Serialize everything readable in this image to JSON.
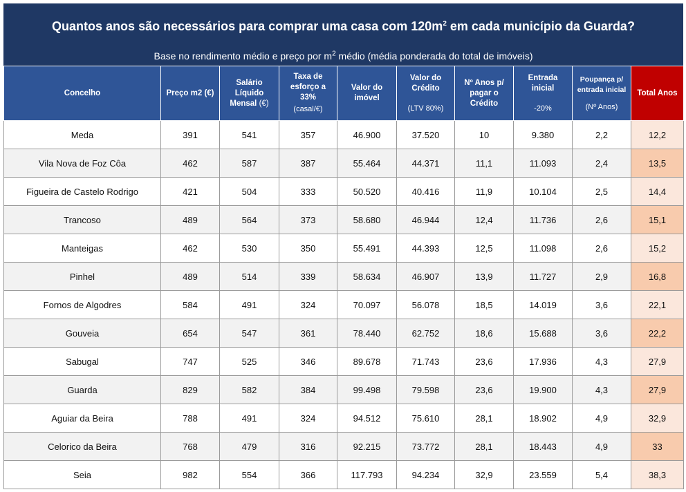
{
  "title_main": "Quantos anos são necessários para comprar uma casa com 120m",
  "title_sup": "2",
  "title_rest": " em cada município da Guarda?",
  "subtitle_main": "Base no rendimento médio e preço por m",
  "subtitle_sup": "2",
  "subtitle_rest": " médio (média ponderada do total de imóveis)",
  "headers": {
    "concelho": "Concelho",
    "preco_m2": "Preço m2 (€)",
    "salario": "Salário Líquido Mensal",
    "salario_unit": "(€)",
    "taxa": "Taxa de esforço a 33%",
    "taxa_unit": "(casal/€)",
    "valor_imovel": "Valor do imóvel",
    "valor_credito": "Valor do Crédito",
    "valor_credito_unit": "(LTV 80%)",
    "anos": "Nº Anos p/ pagar o Crédito",
    "entrada": "Entrada inicial",
    "entrada_unit": "-20%",
    "poupanca": "Poupança p/ entrada inicial",
    "poupanca_unit": "(Nº Anos)",
    "total": "Total Anos"
  },
  "colors": {
    "header_bg": "#2f5597",
    "title_bg": "#1f3864",
    "total_header_bg": "#c00000",
    "total_light": "#fbe7dc",
    "total_dark": "#f8cbad"
  },
  "chart_data": {
    "type": "table",
    "columns": [
      "Concelho",
      "Preço m2 (€)",
      "Salário Líquido Mensal (€)",
      "Taxa de esforço a 33% (casal/€)",
      "Valor do imóvel",
      "Valor do Crédito (LTV 80%)",
      "Nº Anos p/ pagar o Crédito",
      "Entrada inicial -20%",
      "Poupança p/ entrada inicial (Nº Anos)",
      "Total Anos"
    ],
    "rows": [
      [
        "Meda",
        "391",
        "541",
        "357",
        "46.900",
        "37.520",
        "10",
        "9.380",
        "2,2",
        "12,2"
      ],
      [
        "Vila Nova de Foz Côa",
        "462",
        "587",
        "387",
        "55.464",
        "44.371",
        "11,1",
        "11.093",
        "2,4",
        "13,5"
      ],
      [
        "Figueira de Castelo Rodrigo",
        "421",
        "504",
        "333",
        "50.520",
        "40.416",
        "11,9",
        "10.104",
        "2,5",
        "14,4"
      ],
      [
        "Trancoso",
        "489",
        "564",
        "373",
        "58.680",
        "46.944",
        "12,4",
        "11.736",
        "2,6",
        "15,1"
      ],
      [
        "Manteigas",
        "462",
        "530",
        "350",
        "55.491",
        "44.393",
        "12,5",
        "11.098",
        "2,6",
        "15,2"
      ],
      [
        "Pinhel",
        "489",
        "514",
        "339",
        "58.634",
        "46.907",
        "13,9",
        "11.727",
        "2,9",
        "16,8"
      ],
      [
        "Fornos de Algodres",
        "584",
        "491",
        "324",
        "70.097",
        "56.078",
        "18,5",
        "14.019",
        "3,6",
        "22,1"
      ],
      [
        "Gouveia",
        "654",
        "547",
        "361",
        "78.440",
        "62.752",
        "18,6",
        "15.688",
        "3,6",
        "22,2"
      ],
      [
        "Sabugal",
        "747",
        "525",
        "346",
        "89.678",
        "71.743",
        "23,6",
        "17.936",
        "4,3",
        "27,9"
      ],
      [
        "Guarda",
        "829",
        "582",
        "384",
        "99.498",
        "79.598",
        "23,6",
        "19.900",
        "4,3",
        "27,9"
      ],
      [
        "Aguiar da Beira",
        "788",
        "491",
        "324",
        "94.512",
        "75.610",
        "28,1",
        "18.902",
        "4,9",
        "32,9"
      ],
      [
        "Celorico da Beira",
        "768",
        "479",
        "316",
        "92.215",
        "73.772",
        "28,1",
        "18.443",
        "4,9",
        "33"
      ],
      [
        "Seia",
        "982",
        "554",
        "366",
        "117.793",
        "94.234",
        "32,9",
        "23.559",
        "5,4",
        "38,3"
      ]
    ]
  }
}
